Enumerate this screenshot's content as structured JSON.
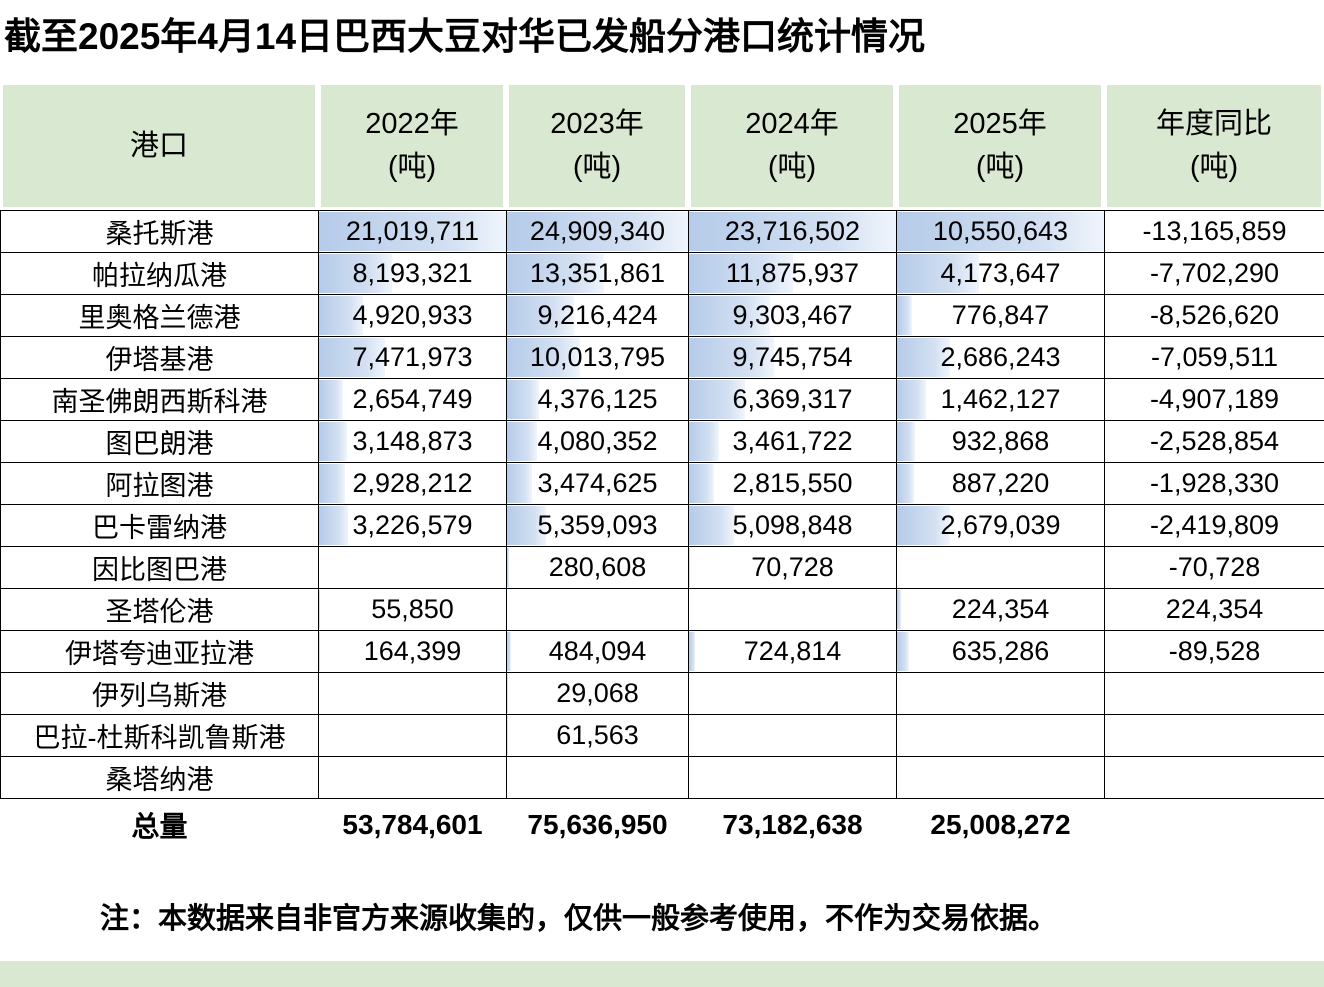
{
  "colors": {
    "header_bg": "#d9e8d0",
    "bar_from": "#b5cbe9",
    "bar_to": "#eff5fc"
  },
  "header": {
    "cols": [
      {
        "line1": "港口",
        "line2": ""
      },
      {
        "line1": "2022年",
        "line2": "(吨)"
      },
      {
        "line1": "2023年",
        "line2": "(吨)"
      },
      {
        "line1": "2024年",
        "line2": "(吨)"
      },
      {
        "line1": "2025年",
        "line2": "(吨)"
      },
      {
        "line1": "年度同比",
        "line2": "(吨)"
      }
    ]
  },
  "note": "注：本数据来自非官方来源收集的，仅供一般参考使用，不作为交易依据。",
  "chart_data": {
    "type": "table",
    "title": "截至2025年4月14日巴西大豆对华已发船分港口统计情况",
    "columns": [
      "港口",
      "2022年(吨)",
      "2023年(吨)",
      "2024年(吨)",
      "2025年(吨)",
      "年度同比(吨)"
    ],
    "rows": [
      {
        "port": "桑托斯港",
        "y2022": 21019711,
        "y2023": 24909340,
        "y2024": 23716502,
        "y2025": 10550643,
        "yoy": -13165859
      },
      {
        "port": "帕拉纳瓜港",
        "y2022": 8193321,
        "y2023": 13351861,
        "y2024": 11875937,
        "y2025": 4173647,
        "yoy": -7702290
      },
      {
        "port": "里奥格兰德港",
        "y2022": 4920933,
        "y2023": 9216424,
        "y2024": 9303467,
        "y2025": 776847,
        "yoy": -8526620
      },
      {
        "port": "伊塔基港",
        "y2022": 7471973,
        "y2023": 10013795,
        "y2024": 9745754,
        "y2025": 2686243,
        "yoy": -7059511
      },
      {
        "port": "南圣佛朗西斯科港",
        "y2022": 2654749,
        "y2023": 4376125,
        "y2024": 6369317,
        "y2025": 1462127,
        "yoy": -4907189
      },
      {
        "port": "图巴朗港",
        "y2022": 3148873,
        "y2023": 4080352,
        "y2024": 3461722,
        "y2025": 932868,
        "yoy": -2528854
      },
      {
        "port": "阿拉图港",
        "y2022": 2928212,
        "y2023": 3474625,
        "y2024": 2815550,
        "y2025": 887220,
        "yoy": -1928330
      },
      {
        "port": "巴卡雷纳港",
        "y2022": 3226579,
        "y2023": 5359093,
        "y2024": 5098848,
        "y2025": 2679039,
        "yoy": -2419809
      },
      {
        "port": "因比图巴港",
        "y2022": null,
        "y2023": 280608,
        "y2024": 70728,
        "y2025": null,
        "yoy": -70728
      },
      {
        "port": "圣塔伦港",
        "y2022": 55850,
        "y2023": null,
        "y2024": null,
        "y2025": 224354,
        "yoy": 224354
      },
      {
        "port": "伊塔夸迪亚拉港",
        "y2022": 164399,
        "y2023": 484094,
        "y2024": 724814,
        "y2025": 635286,
        "yoy": -89528
      },
      {
        "port": "伊列乌斯港",
        "y2022": null,
        "y2023": 29068,
        "y2024": null,
        "y2025": null,
        "yoy": null
      },
      {
        "port": "巴拉-杜斯科凯鲁斯港",
        "y2022": null,
        "y2023": 61563,
        "y2024": null,
        "y2025": null,
        "yoy": null
      },
      {
        "port": "桑塔纳港",
        "y2022": null,
        "y2023": null,
        "y2024": null,
        "y2025": null,
        "yoy": null
      }
    ],
    "total_label": "总量",
    "totals": {
      "y2022": 53784601,
      "y2023": 75636950,
      "y2024": 73182638,
      "y2025": 25008272
    },
    "data_bars": {
      "columns": [
        "y2022",
        "y2023",
        "y2024",
        "y2025"
      ],
      "scale": "column-max",
      "style": "blue gradient bar behind value, left-aligned"
    }
  }
}
